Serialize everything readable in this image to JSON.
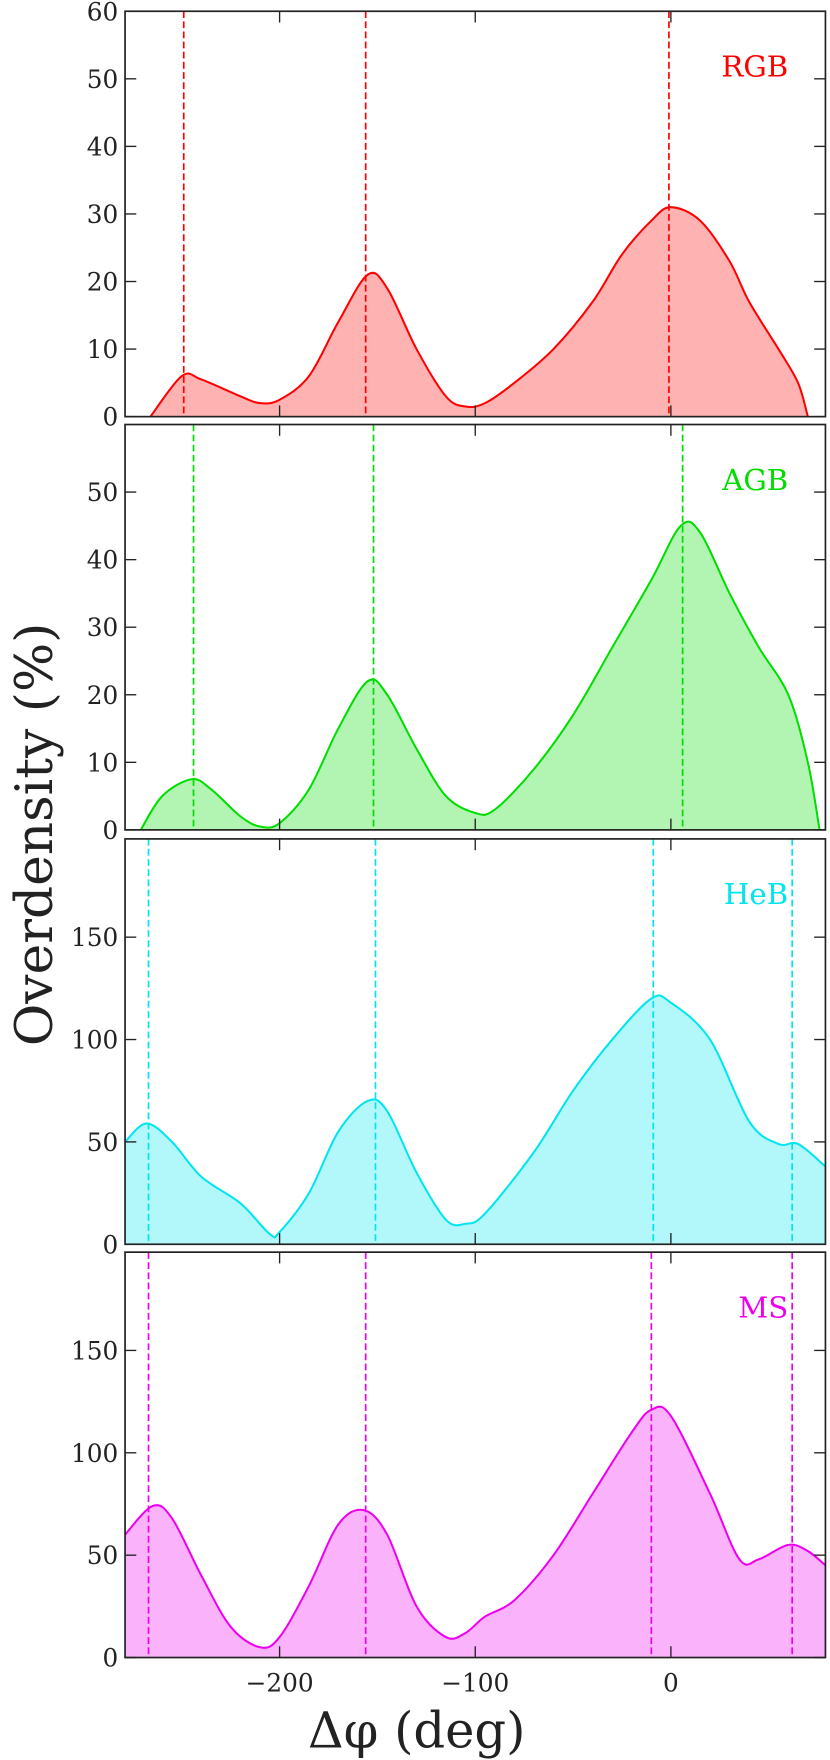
{
  "xlabel": "Δφ (deg)",
  "ylabel": "Overdensity (%)",
  "chart_data": [
    {
      "type": "area",
      "label": "RGB",
      "color": "#ff0000",
      "x": [
        -266,
        -250,
        -240,
        -220,
        -210,
        -200,
        -185,
        -170,
        -155,
        -145,
        -130,
        -115,
        -105,
        -95,
        -80,
        -60,
        -40,
        -25,
        -10,
        0,
        15,
        30,
        40,
        55,
        65,
        70
      ],
      "values": [
        0,
        6,
        5.5,
        3,
        2,
        2.5,
        6,
        14,
        21,
        19,
        10,
        3,
        1.5,
        2,
        5,
        10,
        17,
        24,
        29,
        31,
        29,
        23,
        17,
        10,
        5,
        0
      ],
      "vlines": [
        -249,
        -156,
        -1
      ],
      "ylim": [
        0,
        60
      ],
      "yticks": [
        0,
        10,
        20,
        30,
        40,
        50,
        60
      ]
    },
    {
      "type": "area",
      "label": "AGB",
      "color": "#00dd00",
      "x": [
        -271,
        -260,
        -245,
        -235,
        -220,
        -210,
        -200,
        -185,
        -170,
        -155,
        -145,
        -130,
        -115,
        -100,
        -90,
        -70,
        -50,
        -30,
        -10,
        5,
        15,
        30,
        45,
        60,
        70,
        76
      ],
      "values": [
        0,
        5,
        7.5,
        6,
        2,
        0.5,
        1,
        6,
        15,
        22,
        20,
        12,
        5,
        2.5,
        3,
        9,
        17,
        27,
        37,
        45,
        44,
        35,
        27,
        20,
        10,
        0
      ],
      "vlines": [
        -244,
        -152,
        6
      ],
      "ylim": [
        0,
        60
      ],
      "yticks": [
        0,
        10,
        20,
        30,
        40,
        50
      ]
    },
    {
      "type": "area",
      "label": "HeB",
      "color": "#00e5ee",
      "x": [
        -279,
        -268,
        -255,
        -240,
        -220,
        -205,
        -200,
        -185,
        -170,
        -155,
        -145,
        -130,
        -115,
        -105,
        -95,
        -70,
        -50,
        -30,
        -10,
        0,
        20,
        40,
        55,
        65,
        79
      ],
      "values": [
        50,
        59,
        50,
        33,
        20,
        5,
        6,
        25,
        55,
        70,
        65,
        35,
        12,
        10,
        15,
        45,
        75,
        100,
        120,
        118,
        100,
        60,
        49,
        49,
        38
      ],
      "vlines": [
        -267,
        -151,
        -9,
        62
      ],
      "ylim": [
        0,
        198
      ],
      "yticks": [
        0,
        50,
        100,
        150
      ]
    },
    {
      "type": "area",
      "label": "MS",
      "color": "#ee00ee",
      "x": [
        -279,
        -265,
        -255,
        -240,
        -225,
        -210,
        -200,
        -185,
        -170,
        -157,
        -145,
        -130,
        -115,
        -105,
        -95,
        -80,
        -60,
        -40,
        -20,
        -10,
        0,
        20,
        35,
        45,
        60,
        70,
        79
      ],
      "values": [
        60,
        74,
        68,
        40,
        15,
        5,
        10,
        35,
        65,
        72,
        60,
        25,
        10,
        12,
        20,
        28,
        50,
        80,
        110,
        121,
        118,
        80,
        48,
        48,
        55,
        52,
        45
      ],
      "vlines": [
        -267,
        -156,
        -10,
        62
      ],
      "ylim": [
        0,
        198
      ],
      "yticks": [
        0,
        50,
        100,
        150
      ],
      "xlim": [
        -279,
        79
      ],
      "xticks": [
        {
          "value": -200,
          "label": "−200"
        },
        {
          "value": -100,
          "label": "−100"
        },
        0
      ]
    }
  ]
}
